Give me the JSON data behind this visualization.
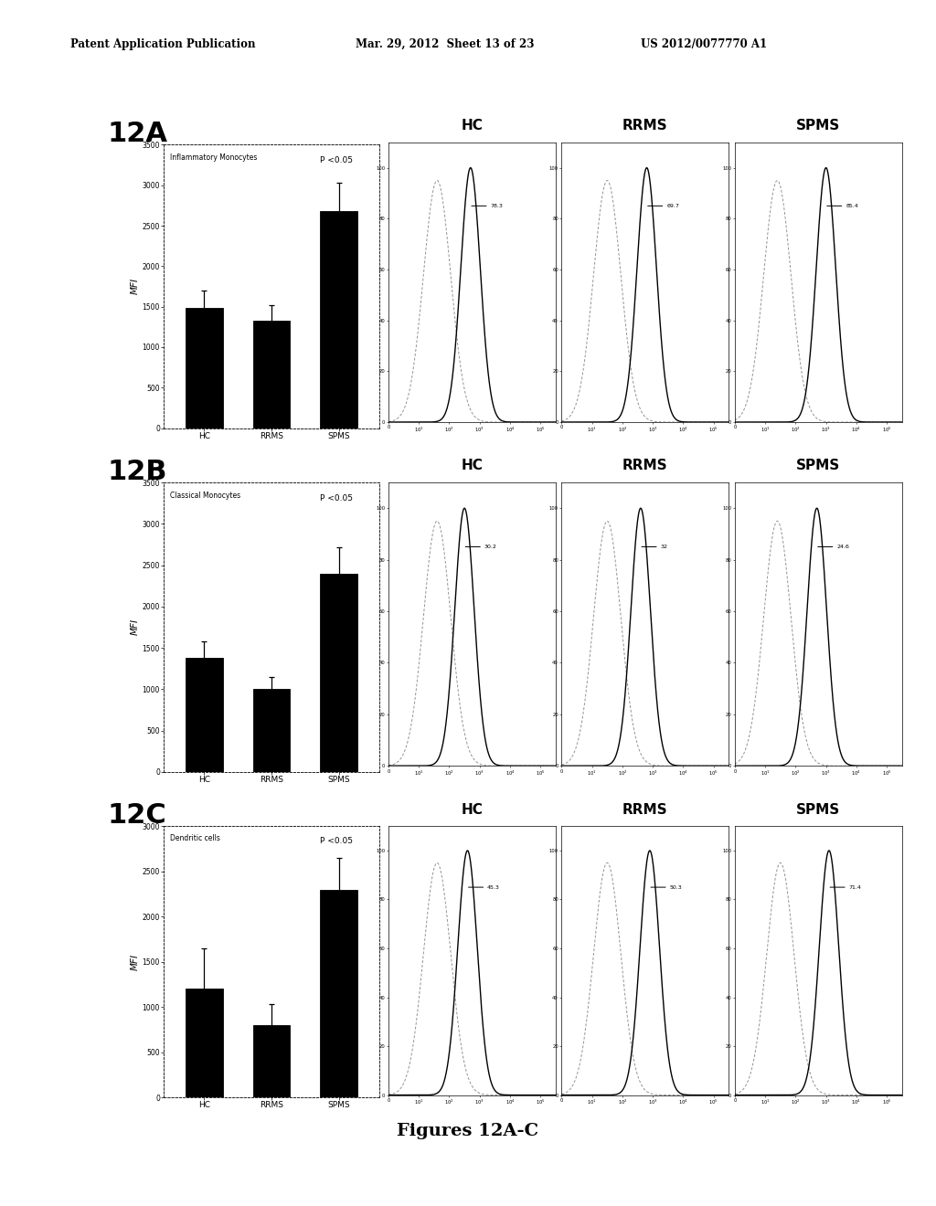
{
  "header_left": "Patent Application Publication",
  "header_mid": "Mar. 29, 2012  Sheet 13 of 23",
  "header_right": "US 2012/0077770 A1",
  "panels": [
    {
      "label": "12A",
      "bar_title": "Inflammatory Monocytes",
      "p_value": "P <0.05",
      "categories": [
        "HC",
        "RRMS",
        "SPMS"
      ],
      "bar_values": [
        1480,
        1330,
        2680
      ],
      "bar_errors": [
        220,
        190,
        350
      ],
      "ylim": [
        0,
        3500
      ],
      "yticks": [
        0,
        500,
        1000,
        1500,
        2000,
        2500,
        3000,
        3500
      ],
      "ylabel": "MFI",
      "flow_annotations": [
        "78.3",
        "69.7",
        "85.4"
      ],
      "flow_ctrl_mu": [
        1.6,
        1.5,
        1.4
      ],
      "flow_sample_mu": [
        2.7,
        2.8,
        3.0
      ]
    },
    {
      "label": "12B",
      "bar_title": "Classical Monocytes",
      "p_value": "P <0.05",
      "categories": [
        "HC",
        "RRMS",
        "SPMS"
      ],
      "bar_values": [
        1380,
        1000,
        2400
      ],
      "bar_errors": [
        200,
        150,
        320
      ],
      "ylim": [
        0,
        3500
      ],
      "yticks": [
        0,
        500,
        1000,
        1500,
        2000,
        2500,
        3000,
        3500
      ],
      "ylabel": "MFI",
      "flow_annotations": [
        "30.2",
        "32",
        "24.6"
      ],
      "flow_ctrl_mu": [
        1.6,
        1.5,
        1.4
      ],
      "flow_sample_mu": [
        2.5,
        2.6,
        2.7
      ]
    },
    {
      "label": "12C",
      "bar_title": "Dendritic cells",
      "p_value": "P <0.05",
      "categories": [
        "HC",
        "RRMS",
        "SPMS"
      ],
      "bar_values": [
        1200,
        800,
        2300
      ],
      "bar_errors": [
        450,
        230,
        350
      ],
      "ylim": [
        0,
        3000
      ],
      "yticks": [
        0,
        500,
        1000,
        1500,
        2000,
        2500,
        3000
      ],
      "ylabel": "MFI",
      "flow_annotations": [
        "45.3",
        "50.3",
        "71.4"
      ],
      "flow_ctrl_mu": [
        1.6,
        1.5,
        1.5
      ],
      "flow_sample_mu": [
        2.6,
        2.9,
        3.1
      ]
    }
  ],
  "flow_labels": [
    "HC",
    "RRMS",
    "SPMS"
  ],
  "figure_caption": "Figures 12A-C",
  "background_color": "#ffffff",
  "bar_color": "#000000",
  "bar_edge_color": "#000000"
}
